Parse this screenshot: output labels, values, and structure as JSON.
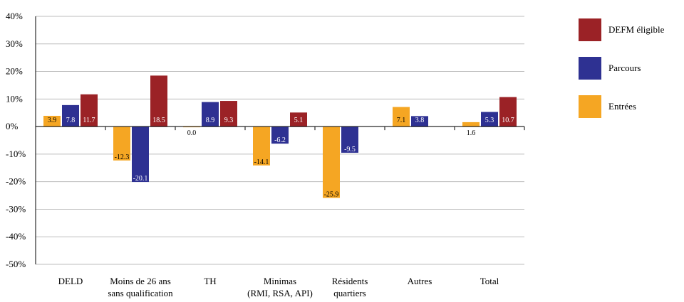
{
  "chart_data": {
    "type": "bar",
    "categories": [
      [
        "DELD"
      ],
      [
        "Moins de 26 ans",
        "sans qualification"
      ],
      [
        "TH"
      ],
      [
        "Minimas",
        "(RMI, RSA, API)"
      ],
      [
        "Résidents",
        "quartiers"
      ],
      [
        "Autres"
      ],
      [
        "Total"
      ]
    ],
    "series": [
      {
        "name": "Entrées",
        "color": "#f5a623",
        "values": [
          3.9,
          -12.3,
          0.0,
          -14.1,
          -25.9,
          7.1,
          1.6
        ],
        "labels": [
          "3.9",
          "-12.3",
          "0.0",
          "-14.1",
          "-25.9",
          "7.1",
          "1.6"
        ]
      },
      {
        "name": "Parcours",
        "color": "#2e3192",
        "values": [
          7.8,
          -20.1,
          8.9,
          -6.2,
          -9.5,
          3.8,
          5.3
        ],
        "labels": [
          "7.8",
          "-20.1",
          "8.9",
          "-6.2",
          "-9.5",
          "3.8",
          "5.3"
        ]
      },
      {
        "name": "DEFM éligible",
        "color": "#9b2226",
        "values": [
          11.7,
          18.5,
          9.3,
          5.1,
          null,
          null,
          10.7
        ],
        "labels": [
          "11.7",
          "18.5",
          "9.3",
          "5.1",
          "",
          "",
          "10.7"
        ]
      }
    ],
    "legend_order": [
      "DEFM éligible",
      "Parcours",
      "Entrées"
    ],
    "y_ticks": [
      "40%",
      "30%",
      "20%",
      "10%",
      "0%",
      "-10%",
      "-20%",
      "-30%",
      "-40%",
      "-50%"
    ],
    "y_tick_values": [
      40,
      30,
      20,
      10,
      0,
      -10,
      -20,
      -30,
      -40,
      -50
    ],
    "ylim": [
      -50,
      40
    ],
    "grid": true,
    "legend_position": "right",
    "title": "",
    "xlabel": "",
    "ylabel": ""
  }
}
